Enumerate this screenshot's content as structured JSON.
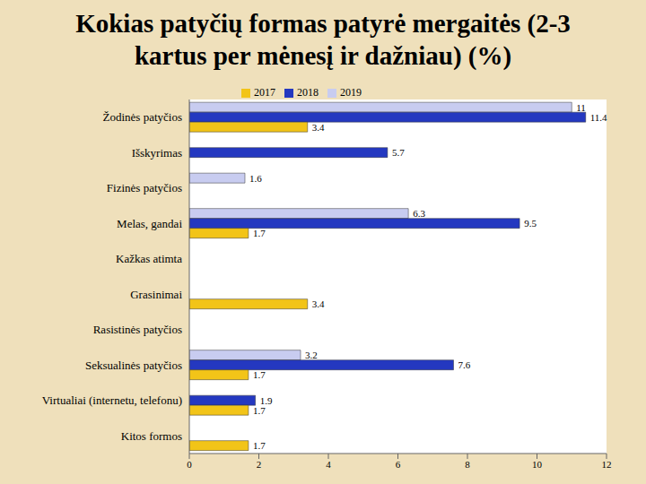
{
  "chart_data": {
    "type": "bar",
    "title": "Kokias patyčių formas patyrė mergaitės (2-3 kartus per mėnesį ir dažniau) (%)",
    "orientation": "horizontal",
    "categories": [
      "Žodinės patyčios",
      "Išskyrimas",
      "Fizinės patyčios",
      "Melas, gandai",
      "Kažkas atimta",
      "Grasinimai",
      "Rasistinės patyčios",
      "Seksualinės patyčios",
      "Virtualiai (internetu, telefonu)",
      "Kitos formos"
    ],
    "series": [
      {
        "name": "2019",
        "color": "#c8ccf0",
        "values": [
          11,
          0,
          1.6,
          6.3,
          0,
          0,
          0,
          3.2,
          0,
          0
        ]
      },
      {
        "name": "2018",
        "color": "#2438c0",
        "values": [
          11.4,
          5.7,
          0,
          9.5,
          0,
          0,
          0,
          7.6,
          1.9,
          0
        ]
      },
      {
        "name": "2017",
        "color": "#f2c418",
        "values": [
          3.4,
          0,
          0,
          1.7,
          0,
          3.4,
          0,
          1.7,
          1.7,
          1.7
        ]
      }
    ],
    "xlim": [
      0,
      12
    ],
    "xticks": [
      0,
      2,
      4,
      6,
      8,
      10,
      12
    ],
    "data_labels": true,
    "grid": false,
    "legend": "top"
  }
}
